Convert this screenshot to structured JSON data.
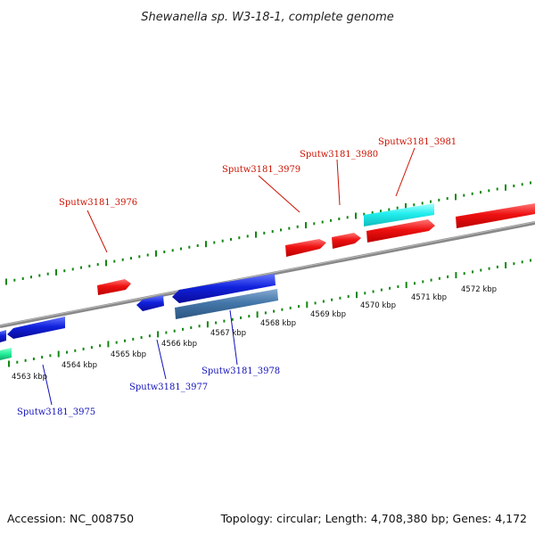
{
  "title": "Shewanella sp. W3-18-1, complete genome",
  "footer": {
    "accession": "Accession: NC_008750",
    "summary": "Topology: circular; Length: 4,708,380 bp; Genes: 4,172"
  },
  "colors": {
    "forward_gene": "#ee1111",
    "reverse_gene": "#1122dd",
    "rna_gene": "#22eedd",
    "selected_gene": "#4477aa",
    "backbone": "#888888",
    "ticks": "#118811",
    "forward_label": "#cc1100",
    "reverse_label": "#1111bb"
  },
  "scale_labels": [
    "4563 kbp",
    "4564 kbp",
    "4565 kbp",
    "4566 kbp",
    "4567 kbp",
    "4568 kbp",
    "4569 kbp",
    "4570 kbp",
    "4571 kbp",
    "4572 kbp"
  ],
  "gene_labels": {
    "forward": [
      "Sputw3181_3976",
      "Sputw3181_3979",
      "Sputw3181_3980",
      "Sputw3181_3981"
    ],
    "reverse": [
      "Sputw3181_3975",
      "Sputw3181_3977",
      "Sputw3181_3978"
    ]
  }
}
